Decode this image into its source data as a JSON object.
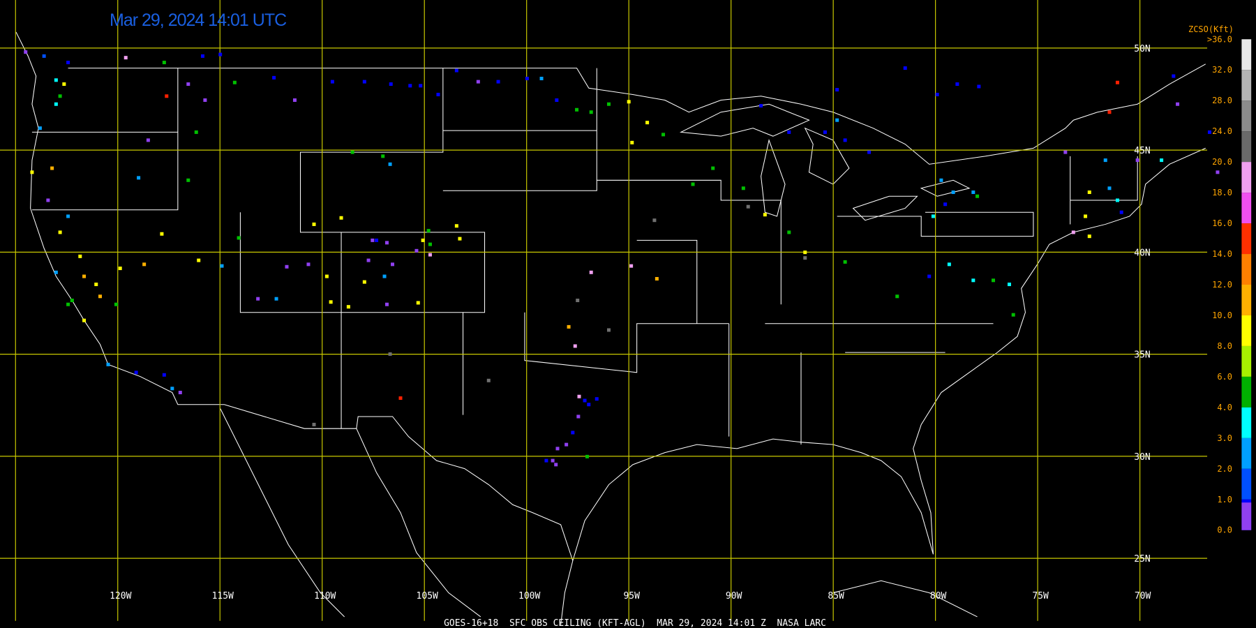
{
  "header": {
    "title": "Mar 29, 2024 14:01 UTC"
  },
  "footer": {
    "caption": "GOES-16+18  SFC OBS CEILING (KFT-AGL)  MAR 29, 2024 14:01 Z  NASA LARC"
  },
  "grid": {
    "latitude_labels": [
      "50N",
      "45N",
      "40N",
      "35N",
      "30N",
      "25N"
    ],
    "longitude_labels": [
      "120W",
      "115W",
      "110W",
      "105W",
      "100W",
      "95W",
      "90W",
      "85W",
      "80W",
      "75W",
      "70W"
    ]
  },
  "legend": {
    "title": "ZCSO(Kft)",
    "labels": [
      ">36.0",
      "32.0",
      "28.0",
      "24.0",
      "20.0",
      "18.0",
      "16.0",
      "14.0",
      "12.0",
      "10.0",
      "8.0",
      "6.0",
      "4.0",
      "3.0",
      "2.0",
      "1.0",
      "0.0"
    ]
  }
}
